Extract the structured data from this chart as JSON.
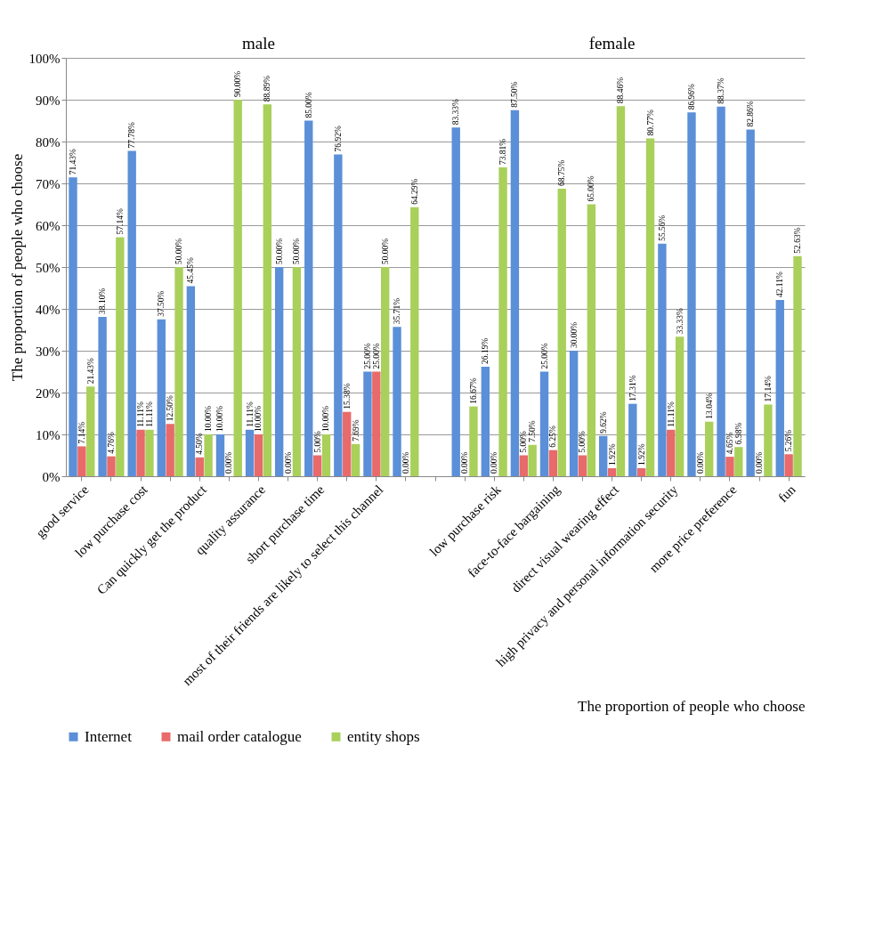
{
  "chart_data": {
    "type": "bar",
    "ylabel": "The proportion of people who choose",
    "xlabel": "The proportion of people who choose",
    "annotations": [
      "male",
      "female"
    ],
    "categories": [
      "good service",
      null,
      "low purchase cost",
      null,
      "Can quickly get the product",
      null,
      "quality assurance",
      null,
      "short purchase time",
      null,
      "most of their friends are likely to select this channel",
      null,
      null,
      null,
      "low purchase risk",
      null,
      "face-to-face bargaining",
      null,
      "direct visual wearing effect",
      null,
      "high privacy and personal information security",
      null,
      "more price preference",
      null,
      "fun"
    ],
    "series": [
      {
        "name": "Internet",
        "color": "#5b8fd8",
        "values": [
          71.43,
          38.1,
          77.78,
          37.5,
          45.45,
          10.0,
          11.11,
          50.0,
          85.0,
          76.92,
          25.0,
          35.71,
          null,
          83.33,
          26.19,
          87.5,
          25.0,
          30.0,
          9.62,
          17.31,
          55.56,
          86.96,
          88.37,
          82.86,
          42.11
        ],
        "value_labels": [
          "71.43%",
          "38.10%",
          "77.78%",
          "37.50%",
          "45.45%",
          "10.00%",
          "11.11%",
          "50.00%",
          "85.00%",
          "76.92%",
          "25.00%",
          "35.71%",
          null,
          "83.33%",
          "26.19%",
          "87.50%",
          "25.00%",
          "30.00%",
          "9.62%",
          "17.31%",
          "55.56%",
          "86.96%",
          "88.37%",
          "82.86%",
          "42.11%"
        ]
      },
      {
        "name": "mail order catalogue",
        "color": "#e86a6a",
        "values": [
          7.14,
          4.76,
          11.11,
          12.5,
          4.5,
          0.0,
          10.0,
          0.0,
          5.0,
          15.38,
          25.0,
          0.0,
          null,
          0.0,
          0.0,
          5.0,
          6.25,
          5.0,
          1.92,
          1.92,
          11.11,
          0.0,
          4.65,
          0.0,
          5.26
        ],
        "value_labels": [
          "7.14%",
          "4.76%",
          "11.11%",
          "12.50%",
          "4.50%",
          "0.00%",
          "10.00%",
          "0.00%",
          "5.00%",
          "15.38%",
          "25.00%",
          "0.00%",
          null,
          "0.00%",
          "0.00%",
          "5.00%",
          "6.25%",
          "5.00%",
          "1.92%",
          "1.92%",
          "11.11%",
          "0.00%",
          "4.65%",
          "0.00%",
          "5.26%"
        ]
      },
      {
        "name": "entity shops",
        "color": "#a9d05a",
        "values": [
          21.43,
          57.14,
          11.11,
          50.0,
          10.0,
          90.0,
          88.89,
          50.0,
          10.0,
          7.69,
          50.0,
          64.29,
          null,
          16.67,
          73.81,
          7.5,
          68.75,
          65.0,
          88.46,
          80.77,
          33.33,
          13.04,
          6.98,
          17.14,
          52.63
        ],
        "value_labels": [
          "21.43%",
          "57.14%",
          "11.11%",
          "50.00%",
          "10.00%",
          "90.00%",
          "88.89%",
          "50.00%",
          "10.00%",
          "7.69%",
          "50.00%",
          "64.29%",
          null,
          "16.67%",
          "73.81%",
          "7.50%",
          "68.75%",
          "65.00%",
          "88.46%",
          "80.77%",
          "33.33%",
          "13.04%",
          "6.98%",
          "17.14%",
          "52.63%"
        ]
      }
    ],
    "ylim": [
      0,
      100
    ],
    "yticks": [
      {
        "value": 0,
        "label": "0%"
      },
      {
        "value": 10,
        "label": "10%"
      },
      {
        "value": 20,
        "label": "20%"
      },
      {
        "value": 30,
        "label": "30%"
      },
      {
        "value": 40,
        "label": "40%"
      },
      {
        "value": 50,
        "label": "50%"
      },
      {
        "value": 60,
        "label": "60%"
      },
      {
        "value": 70,
        "label": "70%"
      },
      {
        "value": 80,
        "label": "80%"
      },
      {
        "value": 90,
        "label": "90%"
      },
      {
        "value": 100,
        "label": "100%"
      }
    ],
    "grid": "y",
    "legend": "bottom"
  }
}
